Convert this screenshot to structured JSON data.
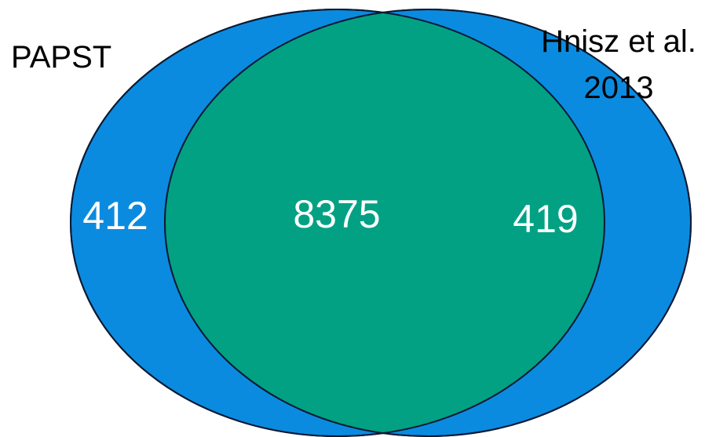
{
  "sets": [
    {
      "name": "PAPST",
      "unique_count": "412"
    },
    {
      "name_line1": "Hnisz et al.",
      "name_line2": "2013",
      "unique_count": "419"
    }
  ],
  "intersection_count": "8375",
  "colors": {
    "set_fill": "#0b8be0",
    "intersection_fill": "#02a184",
    "outline": "#0b1a33",
    "count_text": "#ffffff",
    "label_text": "#000000"
  }
}
